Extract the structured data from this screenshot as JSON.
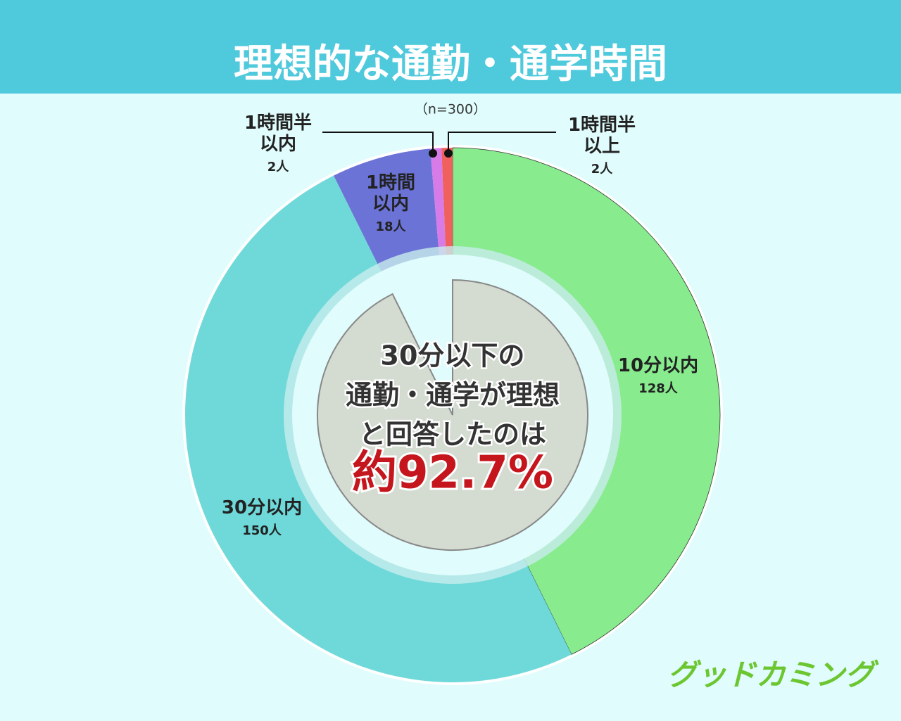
{
  "chart_data": {
    "type": "donut",
    "title": "理想的な通勤・通学時間",
    "annotation": "（n=300）",
    "categories": [
      "10分以内",
      "30分以内",
      "1時間以内",
      "1時間半以内",
      "1時間半以上"
    ],
    "values": [
      128,
      150,
      18,
      2,
      2
    ],
    "value_labels": [
      "128人",
      "150人",
      "18人",
      "2人",
      "2人"
    ],
    "colors": [
      "#88ec8e",
      "#6fd9d9",
      "#6b73d6",
      "#d77be8",
      "#f0605f"
    ],
    "center_text": [
      "30分以下の",
      "通勤・通学が理想",
      "と回答したのは"
    ],
    "center_highlight": "約92.7%",
    "logo": "グッドカミング"
  }
}
